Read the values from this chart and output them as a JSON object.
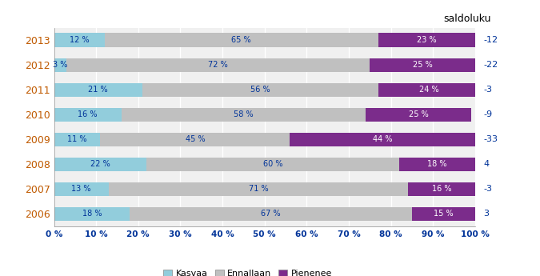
{
  "years": [
    "2006",
    "2007",
    "2008",
    "2009",
    "2010",
    "2011",
    "2012",
    "2013"
  ],
  "kasvaa": [
    18,
    13,
    22,
    11,
    16,
    21,
    3,
    12
  ],
  "ennallaan": [
    67,
    71,
    60,
    45,
    58,
    56,
    72,
    65
  ],
  "pienenee": [
    15,
    16,
    18,
    44,
    25,
    24,
    25,
    23
  ],
  "saldoluku": [
    3,
    -3,
    4,
    -33,
    -9,
    -3,
    -22,
    -12
  ],
  "color_kasvaa": "#92CDDC",
  "color_ennallaan": "#C0C0C0",
  "color_pienenee": "#7B2C8B",
  "title": "saldoluku",
  "legend_labels": [
    "Kasvaa",
    "Ennallaan",
    "Pienenee"
  ],
  "xticks": [
    0,
    10,
    20,
    30,
    40,
    50,
    60,
    70,
    80,
    90,
    100
  ],
  "bar_height": 0.55,
  "year_color": "#C05A00",
  "saldo_color": "#003399",
  "label_color_dark": "#003399",
  "label_color_light": "#FFFFFF",
  "background_color": "#F0F0F0",
  "grid_color": "#FFFFFF"
}
